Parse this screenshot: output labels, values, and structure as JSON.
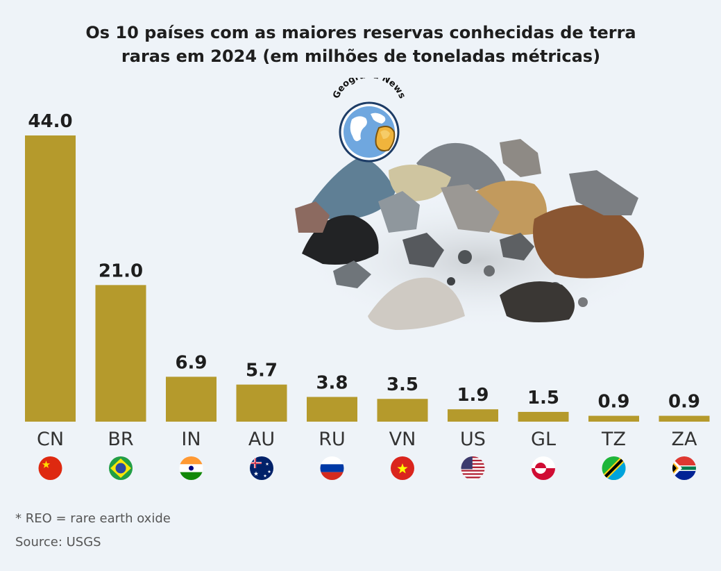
{
  "title_line1": "Os 10 países com as maiores reservas conhecidas de terra",
  "title_line2": "raras em 2024 (em milhões de toneladas métricas)",
  "logo_text": "Geografia News",
  "footnote": "* REO = rare earth oxide",
  "source": "Source: USGS",
  "bar_color": "#b59a2c",
  "chart_data": {
    "type": "bar",
    "title": "Os 10 países com as maiores reservas conhecidas de terra raras em 2024 (em milhões de toneladas métricas)",
    "categories": [
      "CN",
      "BR",
      "IN",
      "AU",
      "RU",
      "VN",
      "US",
      "GL",
      "TZ",
      "ZA"
    ],
    "values": [
      44.0,
      21.0,
      6.9,
      5.7,
      3.8,
      3.5,
      1.9,
      1.5,
      0.9,
      0.9
    ],
    "value_labels": [
      "44.0",
      "21.0",
      "6.9",
      "5.7",
      "3.8",
      "3.5",
      "1.9",
      "1.5",
      "0.9",
      "0.9"
    ],
    "flags": [
      "china-flag",
      "brazil-flag",
      "india-flag",
      "australia-flag",
      "russia-flag",
      "vietnam-flag",
      "usa-flag",
      "greenland-flag",
      "tanzania-flag",
      "south-africa-flag"
    ],
    "xlabel": "",
    "ylabel": "",
    "ylim": [
      0,
      44
    ],
    "grid": false,
    "legend": "none"
  }
}
